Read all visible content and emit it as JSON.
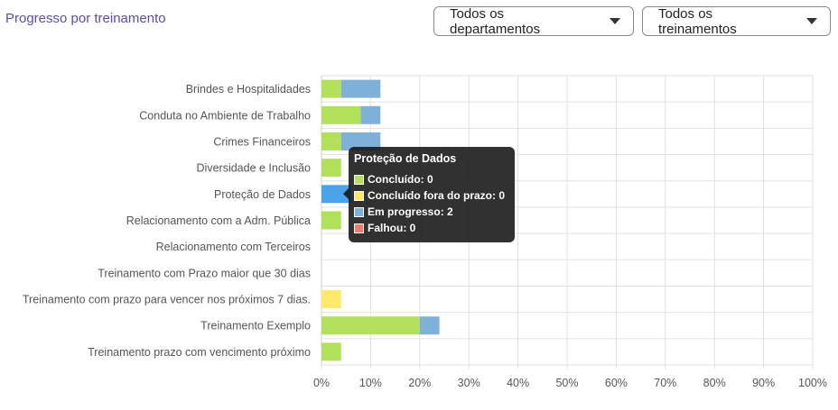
{
  "header": {
    "title": "Progresso por treinamento",
    "department_filter": "Todos os departamentos",
    "training_filter": "Todos os treinamentos"
  },
  "colors": {
    "concluido": "#b3e05b",
    "concluido_fora_prazo": "#ffe86a",
    "em_progresso": "#7fb0d9",
    "em_progresso_highlight": "#4aa3e8",
    "falhou": "#f47a6b"
  },
  "chart_data": {
    "type": "bar",
    "orientation": "horizontal",
    "stacked": true,
    "categories": [
      "Brindes e Hospitalidades",
      "Conduta no Ambiente de Trabalho",
      "Crimes Financeiros",
      "Diversidade e Inclusão",
      "Proteção de Dados",
      "Relacionamento com a Adm. Pública",
      "Relacionamento com Terceiros",
      "Treinamento com Prazo maior que 30 dias",
      "Treinamento com prazo para vencer nos próximos 7 dias.",
      "Treinamento Exemplo",
      "Treinamento prazo com vencimento próximo"
    ],
    "series": [
      {
        "name": "Concluído",
        "color": "#b3e05b",
        "values": [
          4,
          8,
          4,
          4,
          0,
          4,
          0,
          0,
          0,
          20,
          4
        ]
      },
      {
        "name": "Concluído fora do prazo",
        "color": "#ffe86a",
        "values": [
          0,
          0,
          0,
          0,
          0,
          0,
          0,
          0,
          4,
          0,
          0
        ]
      },
      {
        "name": "Em progresso",
        "color": "#7fb0d9",
        "values": [
          8,
          4,
          8,
          0,
          6,
          0,
          0,
          0,
          0,
          4,
          0
        ]
      },
      {
        "name": "Falhou",
        "color": "#f47a6b",
        "values": [
          0,
          0,
          0,
          0,
          0,
          0,
          0,
          0,
          0,
          0,
          0
        ]
      }
    ],
    "xlim": [
      0,
      100
    ],
    "xticks": [
      "0%",
      "10%",
      "20%",
      "30%",
      "40%",
      "50%",
      "60%",
      "70%",
      "80%",
      "90%",
      "100%"
    ],
    "grid": true,
    "highlighted_category_index": 4
  },
  "tooltip": {
    "title": "Proteção de Dados",
    "rows": [
      {
        "label": "Concluído: 0",
        "color": "#b3e05b"
      },
      {
        "label": "Concluído fora do prazo: 0",
        "color": "#ffe86a"
      },
      {
        "label": "Em progresso: 2",
        "color": "#7fb0d9"
      },
      {
        "label": "Falhou: 0",
        "color": "#f47a6b"
      }
    ]
  }
}
